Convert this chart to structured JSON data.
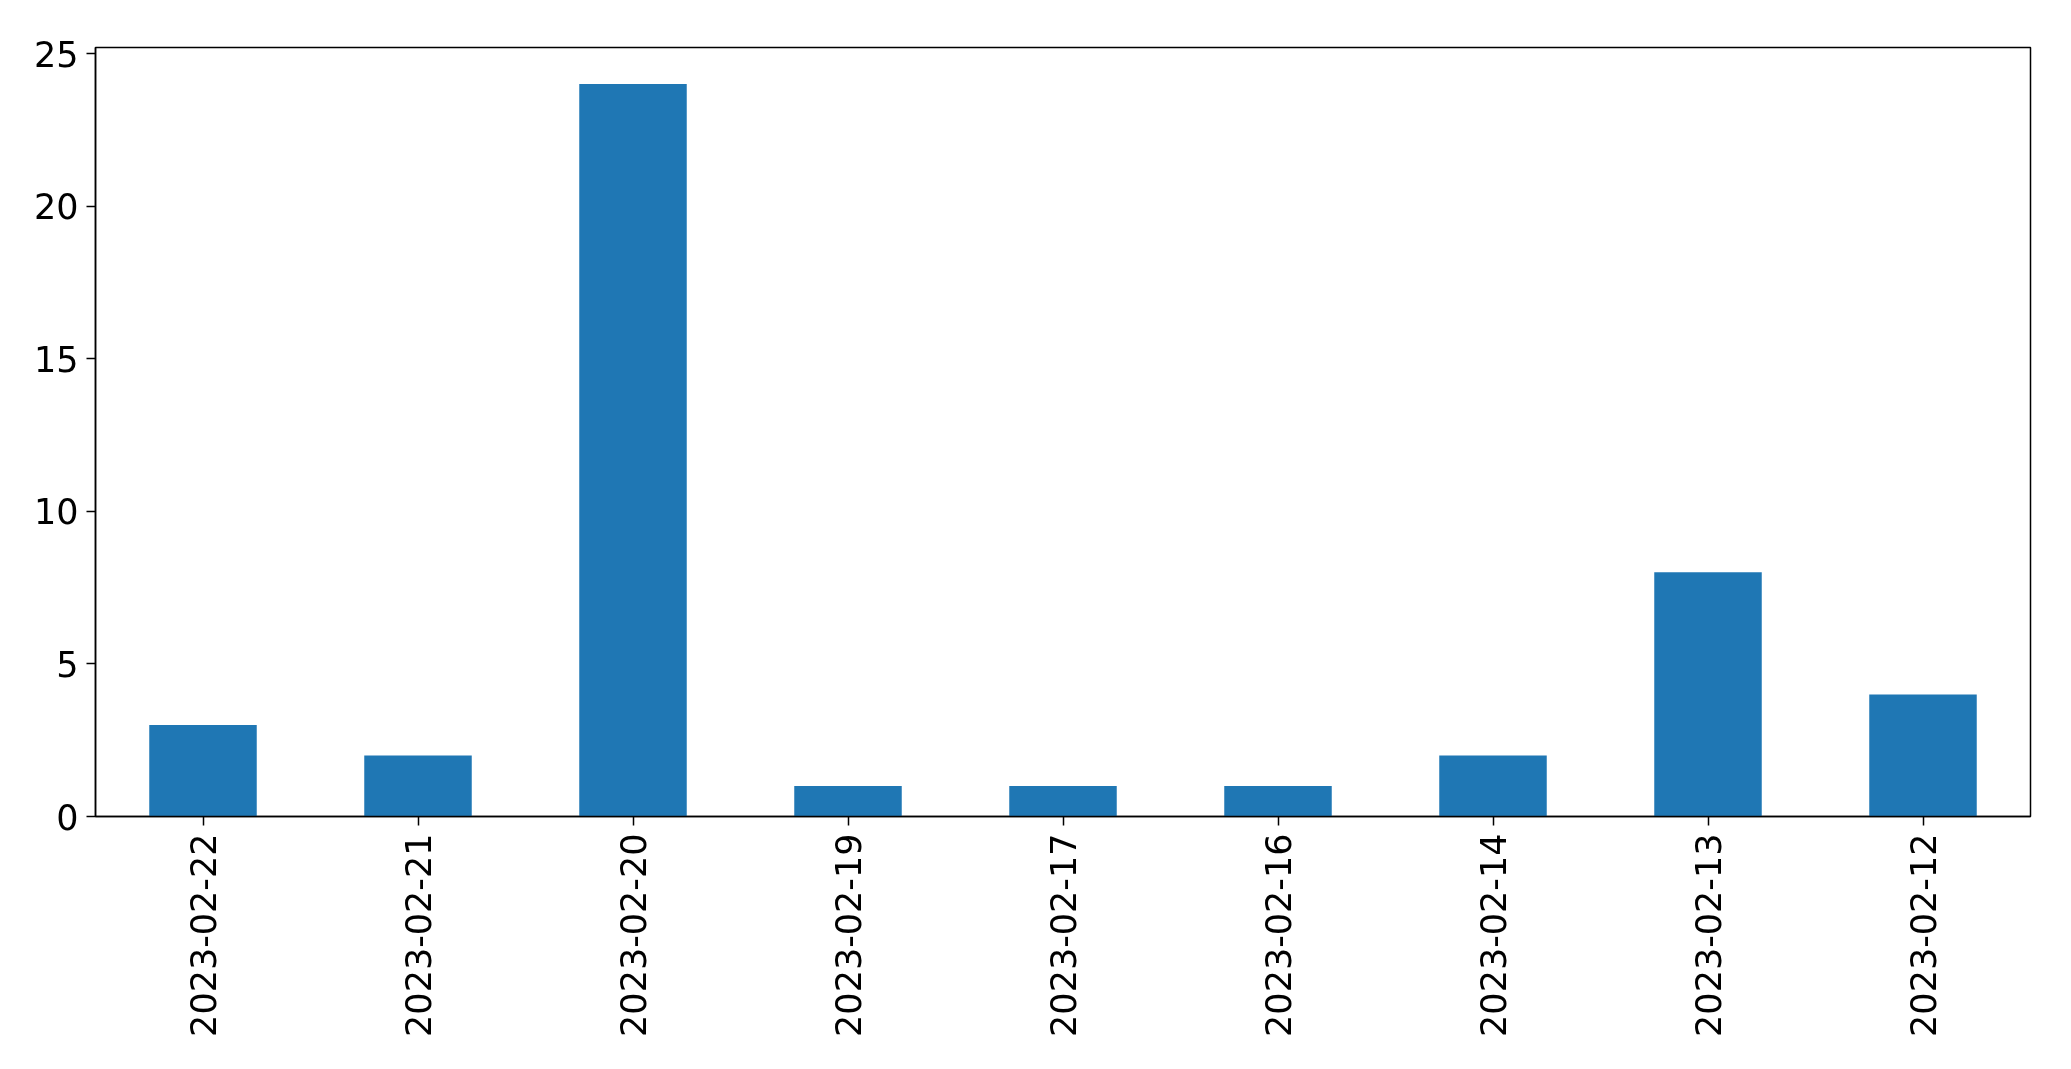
{
  "chart_data": {
    "type": "bar",
    "categories": [
      "2023-02-22",
      "2023-02-21",
      "2023-02-20",
      "2023-02-19",
      "2023-02-17",
      "2023-02-16",
      "2023-02-14",
      "2023-02-13",
      "2023-02-12"
    ],
    "values": [
      3,
      2,
      24,
      1,
      1,
      1,
      2,
      8,
      4
    ],
    "color": "#1f77b4",
    "ylim": [
      0,
      25.2
    ],
    "yticks": [
      0,
      5,
      10,
      15,
      20,
      25
    ],
    "grid": false
  }
}
